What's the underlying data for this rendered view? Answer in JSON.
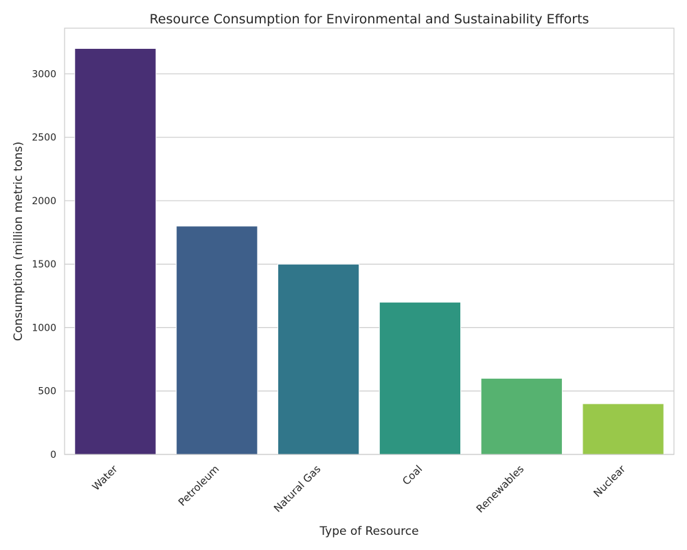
{
  "chart_data": {
    "type": "bar",
    "title": "Resource Consumption for Environmental and Sustainability Efforts",
    "xlabel": "Type of Resource",
    "ylabel": "Consumption (million metric tons)",
    "categories": [
      "Water",
      "Petroleum",
      "Natural Gas",
      "Coal",
      "Renewables",
      "Nuclear"
    ],
    "values": [
      3200,
      1800,
      1500,
      1200,
      600,
      400
    ],
    "ylim": [
      0,
      3360
    ],
    "yticks": [
      0,
      500,
      1000,
      1500,
      2000,
      2500,
      3000
    ],
    "grid": "horizontal",
    "colors": [
      "#482f74",
      "#3e5f8a",
      "#31768a",
      "#2e9580",
      "#56b270",
      "#99c84a"
    ]
  }
}
